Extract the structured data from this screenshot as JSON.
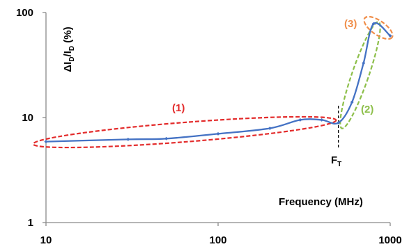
{
  "chart_data": {
    "type": "line",
    "xscale": "log",
    "yscale": "log",
    "xlim": [
      10,
      1000
    ],
    "ylim": [
      1,
      100
    ],
    "x_ticks": [
      "10",
      "100",
      "1000"
    ],
    "y_ticks": [
      "1",
      "10",
      "100"
    ],
    "xlabel": "Frequency (MHz)",
    "ylabel": {
      "main": "ΔI",
      "sub1": "D",
      "slash": "/I",
      "sub2": "D",
      "suffix": " (%)"
    },
    "series": [
      {
        "color": "#4472c4",
        "x": [
          10,
          30,
          50,
          100,
          200,
          300,
          400,
          500,
          600,
          700,
          800,
          1000
        ],
        "y": [
          5.9,
          6.2,
          6.3,
          7.0,
          7.9,
          9.5,
          9.5,
          8.9,
          14,
          33,
          78,
          60
        ]
      }
    ],
    "annotations": [
      {
        "label": "(1)",
        "color": "#e32b2b"
      },
      {
        "label": "(2)",
        "color": "#8dbf4a"
      },
      {
        "label": "(3)",
        "color": "#f08e4a"
      }
    ],
    "marker": {
      "label_main": "F",
      "label_sub": "T",
      "x": 500
    }
  }
}
